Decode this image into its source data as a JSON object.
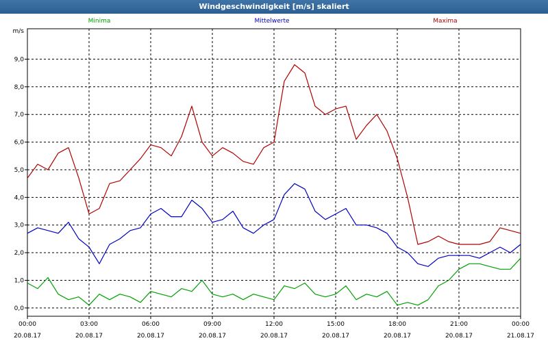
{
  "window": {
    "title": "Windgeschwindigkeit [m/s] skaliert"
  },
  "chart_data": {
    "type": "line",
    "title": "Windgeschwindigkeit [m/s] skaliert",
    "ylabel": "m/s",
    "ylim": [
      -0.3,
      10.1
    ],
    "y_ticks": [
      "0,0",
      "1,0",
      "2,0",
      "3,0",
      "4,0",
      "5,0",
      "6,0",
      "7,0",
      "8,0",
      "9,0"
    ],
    "y_tick_values": [
      0,
      1,
      2,
      3,
      4,
      5,
      6,
      7,
      8,
      9
    ],
    "x_range_hours": [
      0,
      24
    ],
    "x_tick_hours": [
      0,
      3,
      6,
      9,
      12,
      15,
      18,
      21,
      24
    ],
    "x_ticks": [
      {
        "time": "00:00",
        "date": "20.08.17"
      },
      {
        "time": "03:00",
        "date": "20.08.17"
      },
      {
        "time": "06:00",
        "date": "20.08.17"
      },
      {
        "time": "09:00",
        "date": "20.08.17"
      },
      {
        "time": "12:00",
        "date": "20.08.17"
      },
      {
        "time": "15:00",
        "date": "20.08.17"
      },
      {
        "time": "18:00",
        "date": "20.08.17"
      },
      {
        "time": "21:00",
        "date": "20.08.17"
      },
      {
        "time": "00:00",
        "date": "21.08.17"
      }
    ],
    "grid": true,
    "legend_position": "top",
    "series": [
      {
        "name": "Minima",
        "color": "#00a000",
        "x_hours": [
          0.0,
          0.5,
          1.0,
          1.5,
          2.0,
          2.5,
          3.0,
          3.5,
          4.0,
          4.5,
          5.0,
          5.5,
          6.0,
          6.5,
          7.0,
          7.5,
          8.0,
          8.5,
          9.0,
          9.5,
          10.0,
          10.5,
          11.0,
          11.5,
          12.0,
          12.5,
          13.0,
          13.5,
          14.0,
          14.5,
          15.0,
          15.5,
          16.0,
          16.5,
          17.0,
          17.5,
          18.0,
          18.5,
          19.0,
          19.5,
          20.0,
          20.5,
          21.0,
          21.5,
          22.0,
          22.5,
          23.0,
          23.5,
          24.0
        ],
        "values": [
          0.9,
          0.7,
          1.1,
          0.5,
          0.3,
          0.4,
          0.1,
          0.5,
          0.3,
          0.5,
          0.4,
          0.2,
          0.6,
          0.5,
          0.4,
          0.7,
          0.6,
          1.0,
          0.5,
          0.4,
          0.5,
          0.3,
          0.5,
          0.4,
          0.3,
          0.8,
          0.7,
          0.9,
          0.5,
          0.4,
          0.5,
          0.8,
          0.3,
          0.5,
          0.4,
          0.6,
          0.1,
          0.2,
          0.1,
          0.3,
          0.8,
          1.0,
          1.4,
          1.6,
          1.6,
          1.5,
          1.4,
          1.4,
          1.8
        ]
      },
      {
        "name": "Mittelwerte",
        "color": "#0000c0",
        "x_hours": [
          0.0,
          0.5,
          1.0,
          1.5,
          2.0,
          2.5,
          3.0,
          3.5,
          4.0,
          4.5,
          5.0,
          5.5,
          6.0,
          6.5,
          7.0,
          7.5,
          8.0,
          8.5,
          9.0,
          9.5,
          10.0,
          10.5,
          11.0,
          11.5,
          12.0,
          12.5,
          13.0,
          13.5,
          14.0,
          14.5,
          15.0,
          15.5,
          16.0,
          16.5,
          17.0,
          17.5,
          18.0,
          18.5,
          19.0,
          19.5,
          20.0,
          20.5,
          21.0,
          21.5,
          22.0,
          22.5,
          23.0,
          23.5,
          24.0
        ],
        "values": [
          2.7,
          2.9,
          2.8,
          2.7,
          3.1,
          2.5,
          2.2,
          1.6,
          2.3,
          2.5,
          2.8,
          2.9,
          3.4,
          3.6,
          3.3,
          3.3,
          3.9,
          3.6,
          3.1,
          3.2,
          3.5,
          2.9,
          2.7,
          3.0,
          3.2,
          4.1,
          4.5,
          4.3,
          3.5,
          3.2,
          3.4,
          3.6,
          3.0,
          3.0,
          2.9,
          2.7,
          2.2,
          2.0,
          1.6,
          1.5,
          1.8,
          1.9,
          1.9,
          1.9,
          1.8,
          2.0,
          2.2,
          2.0,
          2.3
        ]
      },
      {
        "name": "Maxima",
        "color": "#b00000",
        "x_hours": [
          0.0,
          0.5,
          1.0,
          1.5,
          2.0,
          2.5,
          3.0,
          3.5,
          4.0,
          4.5,
          5.0,
          5.5,
          6.0,
          6.5,
          7.0,
          7.5,
          8.0,
          8.5,
          9.0,
          9.5,
          10.0,
          10.5,
          11.0,
          11.5,
          12.0,
          12.5,
          13.0,
          13.5,
          14.0,
          14.5,
          15.0,
          15.5,
          16.0,
          16.5,
          17.0,
          17.5,
          18.0,
          18.5,
          19.0,
          19.5,
          20.0,
          20.5,
          21.0,
          21.5,
          22.0,
          22.5,
          23.0,
          23.5,
          24.0
        ],
        "values": [
          4.7,
          5.2,
          5.0,
          5.6,
          5.8,
          4.7,
          3.4,
          3.6,
          4.5,
          4.6,
          5.0,
          5.4,
          5.9,
          5.8,
          5.5,
          6.2,
          7.3,
          6.0,
          5.5,
          5.8,
          5.6,
          5.3,
          5.2,
          5.8,
          6.0,
          8.2,
          8.8,
          8.5,
          7.3,
          7.0,
          7.2,
          7.3,
          6.1,
          6.6,
          7.0,
          6.4,
          5.4,
          4.0,
          2.3,
          2.4,
          2.6,
          2.4,
          2.3,
          2.3,
          2.3,
          2.4,
          2.9,
          2.8,
          2.7
        ]
      }
    ]
  }
}
